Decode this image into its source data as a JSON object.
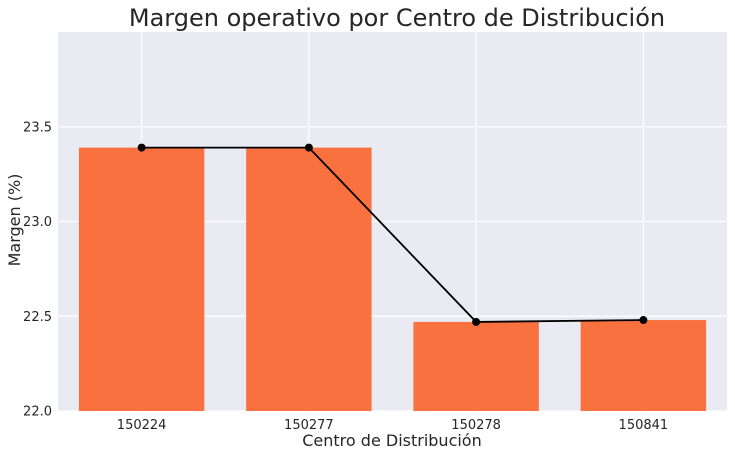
{
  "chart_data": {
    "type": "bar",
    "title": "Margen operativo por Centro de Distribución",
    "xlabel": "Centro de Distribución",
    "ylabel": "Margen (%)",
    "categories": [
      "150224",
      "150277",
      "150278",
      "150841"
    ],
    "series": [
      {
        "kind": "bar",
        "values": [
          23.39,
          23.39,
          22.47,
          22.48
        ]
      },
      {
        "kind": "line",
        "values": [
          23.39,
          23.39,
          22.47,
          22.48
        ]
      }
    ],
    "ylim": [
      22.0,
      24.0
    ],
    "yticks": [
      22.0,
      22.5,
      23.0,
      23.5
    ],
    "ytick_labels": [
      "22.0",
      "22.5",
      "23.0",
      "23.5"
    ],
    "grid": true,
    "legend": "none",
    "colors": {
      "bar": "#f96a35",
      "line": "#000000",
      "plot_background": "#eaeaf2",
      "grid": "#ffffff"
    }
  }
}
